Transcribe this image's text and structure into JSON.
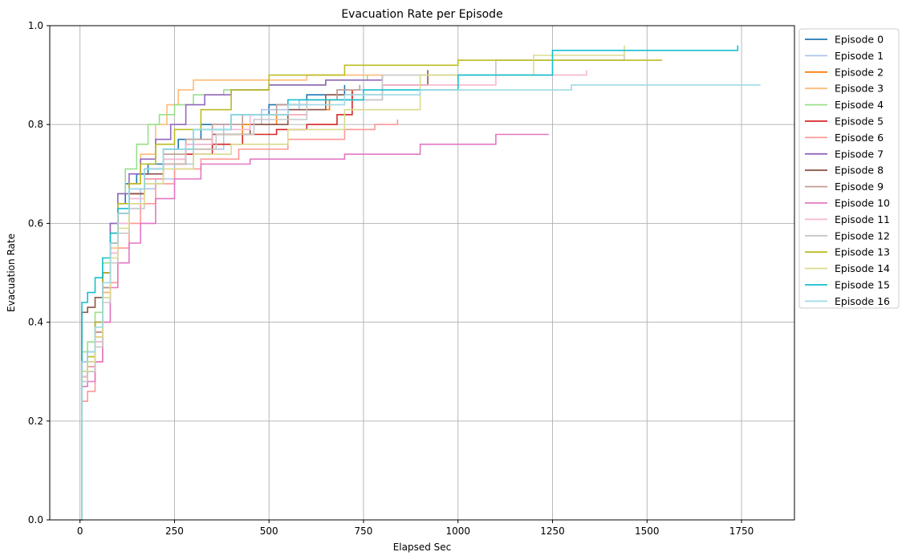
{
  "chart_data": {
    "type": "line",
    "title": "Evacuation Rate per Episode",
    "xlabel": "Elapsed Sec",
    "ylabel": "Evacuation Rate",
    "xlim": [
      -80,
      1890
    ],
    "ylim": [
      0,
      1.0
    ],
    "xticks": [
      0,
      250,
      500,
      750,
      1000,
      1250,
      1500,
      1750
    ],
    "yticks": [
      0.0,
      0.2,
      0.4,
      0.6,
      0.8,
      1.0
    ],
    "xtick_labels": [
      "0",
      "250",
      "500",
      "750",
      "1000",
      "1250",
      "1500",
      "1750"
    ],
    "ytick_labels": [
      "0.0",
      "0.2",
      "0.4",
      "0.6",
      "0.8",
      "1.0"
    ],
    "grid": true,
    "legend_position": "outside-upper-right",
    "series": [
      {
        "name": "Episode 0",
        "color": "#1f77b4",
        "x": [
          0,
          5,
          20,
          40,
          60,
          80,
          100,
          120,
          150,
          180,
          220,
          260,
          320,
          400,
          500,
          600,
          700
        ],
        "y": [
          0.0,
          0.3,
          0.33,
          0.4,
          0.5,
          0.58,
          0.64,
          0.68,
          0.7,
          0.72,
          0.75,
          0.77,
          0.8,
          0.82,
          0.84,
          0.86,
          0.88
        ]
      },
      {
        "name": "Episode 1",
        "color": "#aec7e8",
        "x": [
          0,
          5,
          20,
          40,
          60,
          80,
          100,
          130,
          160,
          200,
          250,
          300,
          380,
          480,
          580,
          680,
          750
        ],
        "y": [
          0.0,
          0.29,
          0.31,
          0.36,
          0.45,
          0.54,
          0.6,
          0.64,
          0.67,
          0.69,
          0.72,
          0.75,
          0.8,
          0.83,
          0.85,
          0.87,
          0.88
        ]
      },
      {
        "name": "Episode 2",
        "color": "#ff7f0e",
        "x": [
          0,
          5,
          20,
          40,
          60,
          80,
          100,
          130,
          170,
          220,
          280,
          350,
          430,
          520,
          600,
          660,
          720
        ],
        "y": [
          0.0,
          0.29,
          0.31,
          0.37,
          0.46,
          0.56,
          0.62,
          0.66,
          0.69,
          0.72,
          0.75,
          0.78,
          0.8,
          0.82,
          0.83,
          0.85,
          0.87
        ]
      },
      {
        "name": "Episode 3",
        "color": "#ffbb78",
        "x": [
          0,
          5,
          20,
          40,
          60,
          80,
          100,
          130,
          160,
          200,
          230,
          260,
          300,
          400,
          600,
          750,
          800
        ],
        "y": [
          0.0,
          0.28,
          0.3,
          0.36,
          0.46,
          0.55,
          0.62,
          0.68,
          0.74,
          0.8,
          0.84,
          0.87,
          0.89,
          0.89,
          0.9,
          0.9,
          0.9
        ]
      },
      {
        "name": "Episode 4",
        "color": "#98df8a",
        "x": [
          0,
          5,
          20,
          40,
          60,
          80,
          100,
          120,
          150,
          180,
          210,
          250,
          300,
          380,
          500,
          650,
          760
        ],
        "y": [
          0.0,
          0.34,
          0.36,
          0.42,
          0.52,
          0.6,
          0.66,
          0.71,
          0.76,
          0.8,
          0.82,
          0.84,
          0.86,
          0.87,
          0.88,
          0.89,
          0.9
        ]
      },
      {
        "name": "Episode 5",
        "color": "#d62728",
        "x": [
          0,
          5,
          20,
          40,
          60,
          80,
          100,
          130,
          170,
          220,
          280,
          350,
          430,
          520,
          600,
          680,
          720
        ],
        "y": [
          0.0,
          0.29,
          0.31,
          0.38,
          0.47,
          0.56,
          0.62,
          0.66,
          0.69,
          0.72,
          0.74,
          0.76,
          0.78,
          0.79,
          0.8,
          0.82,
          0.87
        ]
      },
      {
        "name": "Episode 6",
        "color": "#ff9896",
        "x": [
          0,
          5,
          20,
          40,
          60,
          80,
          100,
          130,
          160,
          200,
          250,
          320,
          420,
          550,
          700,
          780,
          840
        ],
        "y": [
          0.0,
          0.24,
          0.26,
          0.32,
          0.4,
          0.48,
          0.55,
          0.6,
          0.64,
          0.68,
          0.71,
          0.73,
          0.75,
          0.77,
          0.79,
          0.8,
          0.81
        ]
      },
      {
        "name": "Episode 7",
        "color": "#9467bd",
        "x": [
          0,
          5,
          20,
          40,
          60,
          80,
          100,
          130,
          160,
          200,
          240,
          280,
          330,
          400,
          500,
          650,
          800
        ],
        "y": [
          0.0,
          0.32,
          0.34,
          0.4,
          0.5,
          0.6,
          0.66,
          0.7,
          0.73,
          0.77,
          0.8,
          0.84,
          0.86,
          0.87,
          0.88,
          0.89,
          0.9
        ]
      },
      {
        "name": "Episode 8",
        "color": "#8c564b",
        "x": [
          0,
          5,
          20,
          40,
          60,
          80,
          100,
          130,
          170,
          220,
          280,
          350,
          450,
          550,
          650,
          800,
          920
        ],
        "y": [
          0.0,
          0.42,
          0.43,
          0.45,
          0.5,
          0.56,
          0.62,
          0.66,
          0.7,
          0.73,
          0.76,
          0.78,
          0.8,
          0.83,
          0.86,
          0.88,
          0.91
        ]
      },
      {
        "name": "Episode 9",
        "color": "#c49c94",
        "x": [
          0,
          5,
          20,
          40,
          60,
          80,
          100,
          130,
          170,
          220,
          280,
          350,
          430,
          520,
          600,
          680,
          740
        ],
        "y": [
          0.0,
          0.3,
          0.32,
          0.38,
          0.47,
          0.56,
          0.62,
          0.67,
          0.71,
          0.74,
          0.77,
          0.8,
          0.82,
          0.84,
          0.85,
          0.87,
          0.88
        ]
      },
      {
        "name": "Episode 10",
        "color": "#e377c2",
        "x": [
          0,
          5,
          20,
          40,
          60,
          80,
          100,
          130,
          160,
          200,
          250,
          320,
          450,
          700,
          900,
          1100,
          1240
        ],
        "y": [
          0.0,
          0.27,
          0.28,
          0.32,
          0.4,
          0.47,
          0.52,
          0.56,
          0.6,
          0.65,
          0.69,
          0.72,
          0.73,
          0.74,
          0.76,
          0.78,
          0.78
        ]
      },
      {
        "name": "Episode 11",
        "color": "#f7b6d2",
        "x": [
          0,
          5,
          20,
          40,
          60,
          80,
          100,
          130,
          170,
          220,
          280,
          350,
          450,
          600,
          800,
          1100,
          1340
        ],
        "y": [
          0.0,
          0.29,
          0.31,
          0.36,
          0.45,
          0.54,
          0.6,
          0.65,
          0.69,
          0.73,
          0.76,
          0.79,
          0.82,
          0.85,
          0.88,
          0.9,
          0.91
        ]
      },
      {
        "name": "Episode 12",
        "color": "#c7c7c7",
        "x": [
          0,
          5,
          20,
          40,
          60,
          80,
          100,
          130,
          170,
          220,
          280,
          360,
          460,
          600,
          800,
          1100,
          1440
        ],
        "y": [
          0.0,
          0.28,
          0.3,
          0.35,
          0.44,
          0.52,
          0.58,
          0.63,
          0.68,
          0.72,
          0.75,
          0.78,
          0.81,
          0.85,
          0.9,
          0.93,
          0.94
        ]
      },
      {
        "name": "Episode 13",
        "color": "#bcbd22",
        "x": [
          0,
          5,
          20,
          40,
          60,
          80,
          100,
          130,
          160,
          200,
          250,
          320,
          400,
          500,
          700,
          1000,
          1540
        ],
        "y": [
          0.0,
          0.3,
          0.33,
          0.4,
          0.5,
          0.58,
          0.64,
          0.68,
          0.72,
          0.76,
          0.79,
          0.83,
          0.87,
          0.9,
          0.92,
          0.93,
          0.93
        ]
      },
      {
        "name": "Episode 14",
        "color": "#dbdb8d",
        "x": [
          0,
          5,
          20,
          40,
          60,
          80,
          100,
          130,
          170,
          220,
          300,
          400,
          550,
          700,
          900,
          1200,
          1440
        ],
        "y": [
          0.0,
          0.3,
          0.32,
          0.37,
          0.45,
          0.53,
          0.59,
          0.64,
          0.68,
          0.71,
          0.74,
          0.76,
          0.79,
          0.83,
          0.9,
          0.94,
          0.96
        ]
      },
      {
        "name": "Episode 15",
        "color": "#17becf",
        "x": [
          0,
          5,
          20,
          40,
          60,
          80,
          100,
          130,
          170,
          220,
          300,
          400,
          550,
          750,
          1000,
          1250,
          1740
        ],
        "y": [
          0.0,
          0.44,
          0.46,
          0.49,
          0.53,
          0.58,
          0.63,
          0.67,
          0.71,
          0.75,
          0.79,
          0.82,
          0.85,
          0.87,
          0.9,
          0.95,
          0.96
        ]
      },
      {
        "name": "Episode 16",
        "color": "#9edae5",
        "x": [
          0,
          5,
          20,
          40,
          60,
          80,
          100,
          130,
          170,
          220,
          300,
          400,
          550,
          700,
          900,
          1300,
          1800
        ],
        "y": [
          0.0,
          0.32,
          0.34,
          0.39,
          0.48,
          0.56,
          0.62,
          0.67,
          0.71,
          0.75,
          0.79,
          0.82,
          0.84,
          0.86,
          0.87,
          0.88,
          0.88
        ]
      }
    ]
  }
}
